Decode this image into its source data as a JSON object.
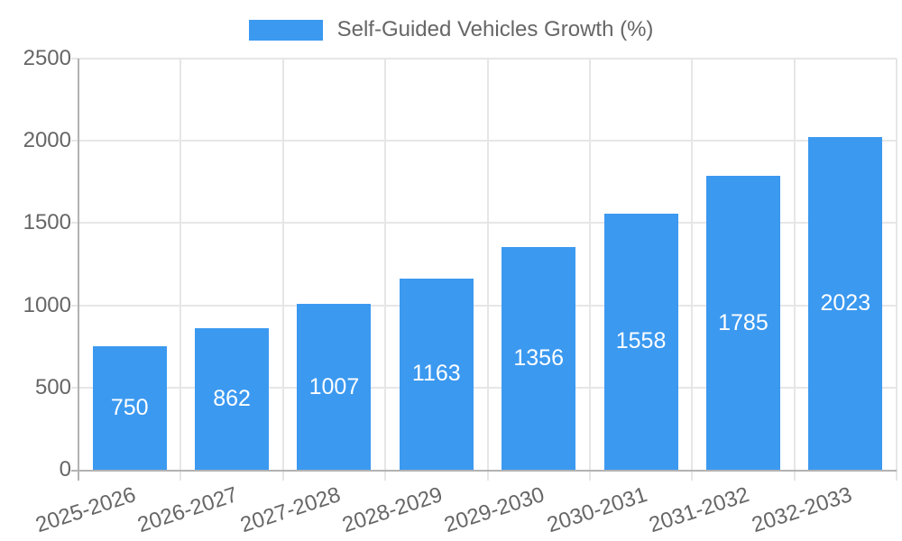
{
  "chart_data": {
    "type": "bar",
    "title": "",
    "legend": {
      "label": "Self-Guided Vehicles Growth (%)",
      "position": "top"
    },
    "categories": [
      "2025-2026",
      "2026-2027",
      "2027-2028",
      "2028-2029",
      "2029-2030",
      "2030-2031",
      "2031-2032",
      "2032-2033"
    ],
    "values": [
      750,
      862,
      1007,
      1163,
      1356,
      1558,
      1785,
      2023
    ],
    "value_labels": [
      "750",
      "862",
      "1007",
      "1163",
      "1356",
      "1558",
      "1785",
      "2023"
    ],
    "xlabel": "",
    "ylabel": "",
    "ylim": [
      0,
      2500
    ],
    "yticks": [
      0,
      500,
      1000,
      1500,
      2000,
      2500
    ],
    "grid": true,
    "x_tick_rotation_deg": -18,
    "colors": {
      "bar": "#3b99f0",
      "bar_value_label": "#ffffff",
      "grid": "#e6e6e6",
      "axis": "#b2b2b2",
      "tick_text": "#666666",
      "legend_text": "#666666",
      "background": "#ffffff"
    }
  }
}
